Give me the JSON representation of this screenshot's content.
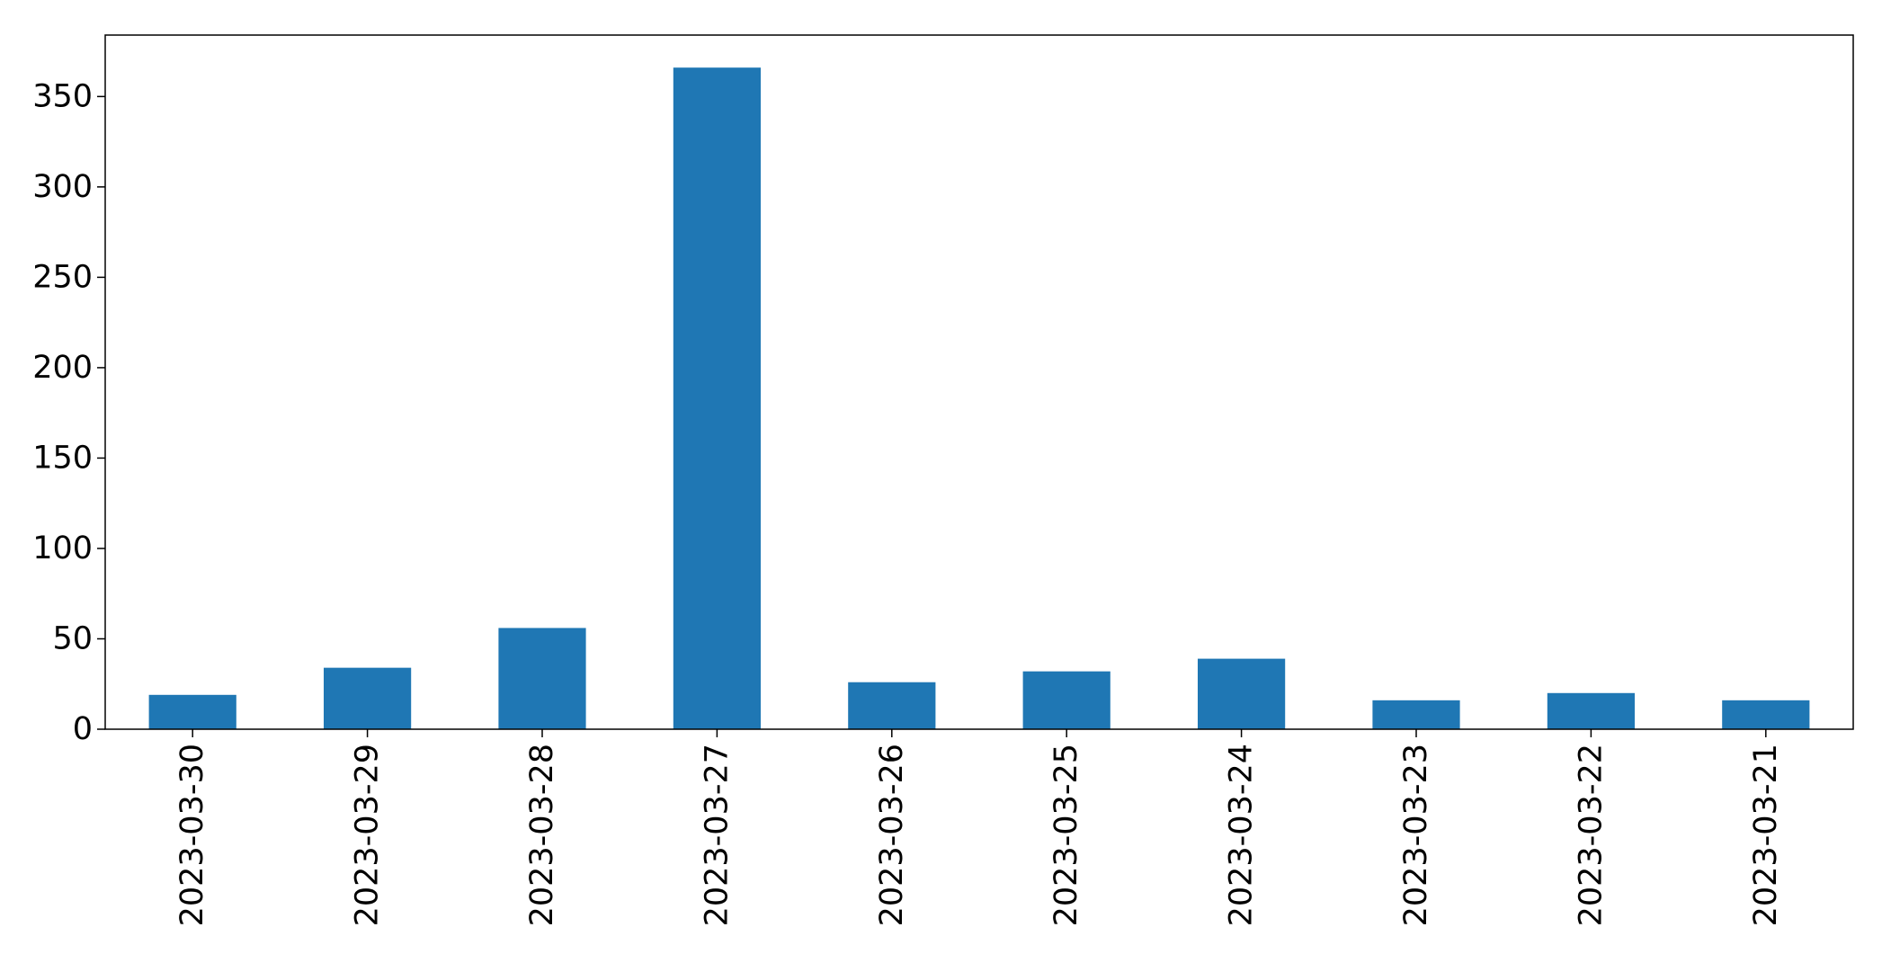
{
  "chart_data": {
    "type": "bar",
    "title": "",
    "xlabel": "",
    "ylabel": "",
    "categories": [
      "2023-03-30",
      "2023-03-29",
      "2023-03-28",
      "2023-03-27",
      "2023-03-26",
      "2023-03-25",
      "2023-03-24",
      "2023-03-23",
      "2023-03-22",
      "2023-03-21"
    ],
    "values": [
      19,
      34,
      56,
      366,
      26,
      32,
      39,
      16,
      20,
      16
    ],
    "ylim": [
      0,
      384
    ],
    "yticks": [
      0,
      50,
      100,
      150,
      200,
      250,
      300,
      350
    ],
    "ytick_labels": [
      "0",
      "50",
      "100",
      "150",
      "200",
      "250",
      "300",
      "350"
    ],
    "bar_color": "#1f77b4",
    "grid": false,
    "legend": "none"
  }
}
